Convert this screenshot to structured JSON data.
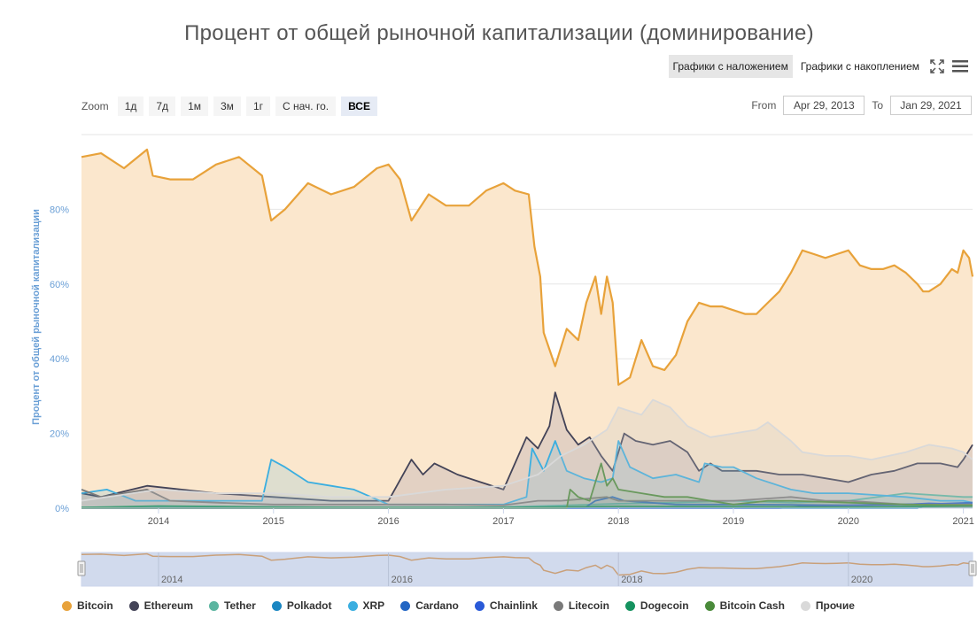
{
  "title": "Процент от общей рыночной капитализации (доминирование)",
  "toolbar": {
    "overlay_label": "Графики с наложением",
    "stacked_label": "Графики с накоплением",
    "fullscreen_icon": "fullscreen-icon",
    "menu_icon": "hamburger-menu-icon"
  },
  "zoom": {
    "label": "Zoom",
    "buttons": [
      "1д",
      "7д",
      "1м",
      "3м",
      "1г",
      "С нач. го.",
      "ВСЕ"
    ],
    "active": "ВСЕ"
  },
  "range": {
    "from_label": "From",
    "from_value": "Apr 29, 2013",
    "to_label": "To",
    "to_value": "Jan 29, 2021"
  },
  "chart_data": {
    "type": "area",
    "ylabel": "Процент от общей рыночной капитализации",
    "ylim": [
      0,
      100
    ],
    "xlim": [
      2013.33,
      2021.08
    ],
    "yticks": [
      0,
      20,
      40,
      60,
      80
    ],
    "ytick_labels": [
      "0%",
      "20%",
      "40%",
      "60%",
      "80%"
    ],
    "xticks": [
      2014,
      2015,
      2016,
      2017,
      2018,
      2019,
      2020,
      2021
    ],
    "xtick_labels": [
      "2014",
      "2015",
      "2016",
      "2017",
      "2018",
      "2019",
      "2020",
      "2021"
    ],
    "navigator_ticks": [
      2014,
      2016,
      2018,
      2020
    ],
    "navigator_tick_labels": [
      "2014",
      "2016",
      "2018",
      "2020"
    ],
    "grid": true,
    "legend_position": "bottom",
    "series": [
      {
        "name": "Bitcoin",
        "color": "#e8a23a",
        "fill": "#fbe7cd",
        "points": [
          [
            2013.33,
            94
          ],
          [
            2013.5,
            95
          ],
          [
            2013.7,
            91
          ],
          [
            2013.9,
            96
          ],
          [
            2013.95,
            89
          ],
          [
            2014.1,
            88
          ],
          [
            2014.3,
            88
          ],
          [
            2014.5,
            92
          ],
          [
            2014.7,
            94
          ],
          [
            2014.9,
            89
          ],
          [
            2014.98,
            77
          ],
          [
            2015.1,
            80
          ],
          [
            2015.3,
            87
          ],
          [
            2015.5,
            84
          ],
          [
            2015.7,
            86
          ],
          [
            2015.9,
            91
          ],
          [
            2016.0,
            92
          ],
          [
            2016.1,
            88
          ],
          [
            2016.2,
            77
          ],
          [
            2016.35,
            84
          ],
          [
            2016.5,
            81
          ],
          [
            2016.7,
            81
          ],
          [
            2016.85,
            85
          ],
          [
            2017.0,
            87
          ],
          [
            2017.1,
            85
          ],
          [
            2017.22,
            84
          ],
          [
            2017.27,
            70
          ],
          [
            2017.32,
            62
          ],
          [
            2017.35,
            47
          ],
          [
            2017.45,
            38
          ],
          [
            2017.55,
            48
          ],
          [
            2017.65,
            45
          ],
          [
            2017.72,
            55
          ],
          [
            2017.8,
            62
          ],
          [
            2017.85,
            52
          ],
          [
            2017.9,
            62
          ],
          [
            2017.95,
            55
          ],
          [
            2018.0,
            33
          ],
          [
            2018.1,
            35
          ],
          [
            2018.2,
            45
          ],
          [
            2018.3,
            38
          ],
          [
            2018.4,
            37
          ],
          [
            2018.5,
            41
          ],
          [
            2018.6,
            50
          ],
          [
            2018.7,
            55
          ],
          [
            2018.8,
            54
          ],
          [
            2018.9,
            54
          ],
          [
            2019.0,
            53
          ],
          [
            2019.1,
            52
          ],
          [
            2019.2,
            52
          ],
          [
            2019.3,
            55
          ],
          [
            2019.4,
            58
          ],
          [
            2019.5,
            63
          ],
          [
            2019.6,
            69
          ],
          [
            2019.7,
            68
          ],
          [
            2019.8,
            67
          ],
          [
            2019.9,
            68
          ],
          [
            2020.0,
            69
          ],
          [
            2020.1,
            65
          ],
          [
            2020.2,
            64
          ],
          [
            2020.3,
            64
          ],
          [
            2020.4,
            65
          ],
          [
            2020.5,
            63
          ],
          [
            2020.6,
            60
          ],
          [
            2020.65,
            58
          ],
          [
            2020.7,
            58
          ],
          [
            2020.8,
            60
          ],
          [
            2020.9,
            64
          ],
          [
            2020.95,
            63
          ],
          [
            2021.0,
            69
          ],
          [
            2021.05,
            67
          ],
          [
            2021.08,
            62
          ]
        ]
      },
      {
        "name": "Ethereum",
        "color": "#434357",
        "fill": "rgba(120,110,150,0.18)",
        "points": [
          [
            2013.33,
            4
          ],
          [
            2013.5,
            3
          ],
          [
            2013.9,
            6
          ],
          [
            2014.5,
            4
          ],
          [
            2015.0,
            3
          ],
          [
            2015.5,
            2
          ],
          [
            2016.0,
            2
          ],
          [
            2016.2,
            13
          ],
          [
            2016.3,
            9
          ],
          [
            2016.4,
            12
          ],
          [
            2016.6,
            9
          ],
          [
            2016.8,
            7
          ],
          [
            2017.0,
            5
          ],
          [
            2017.2,
            19
          ],
          [
            2017.3,
            16
          ],
          [
            2017.4,
            22
          ],
          [
            2017.45,
            31
          ],
          [
            2017.55,
            21
          ],
          [
            2017.65,
            17
          ],
          [
            2017.75,
            19
          ],
          [
            2017.85,
            14
          ],
          [
            2017.95,
            10
          ],
          [
            2018.05,
            20
          ],
          [
            2018.15,
            18
          ],
          [
            2018.3,
            17
          ],
          [
            2018.45,
            18
          ],
          [
            2018.6,
            15
          ],
          [
            2018.7,
            10
          ],
          [
            2018.8,
            12
          ],
          [
            2018.9,
            10
          ],
          [
            2019.0,
            10
          ],
          [
            2019.2,
            10
          ],
          [
            2019.4,
            9
          ],
          [
            2019.6,
            9
          ],
          [
            2019.8,
            8
          ],
          [
            2020.0,
            7
          ],
          [
            2020.2,
            9
          ],
          [
            2020.4,
            10
          ],
          [
            2020.6,
            12
          ],
          [
            2020.8,
            12
          ],
          [
            2020.95,
            11
          ],
          [
            2021.0,
            13
          ],
          [
            2021.08,
            17
          ]
        ]
      },
      {
        "name": "Tether",
        "color": "#5bb5a0",
        "fill": "rgba(91,181,160,0.12)",
        "points": [
          [
            2013.33,
            0.2
          ],
          [
            2015.0,
            0.3
          ],
          [
            2016.0,
            0.2
          ],
          [
            2017.0,
            0.3
          ],
          [
            2018.0,
            1.2
          ],
          [
            2018.5,
            1.5
          ],
          [
            2019.0,
            2
          ],
          [
            2019.5,
            1.5
          ],
          [
            2020.0,
            2
          ],
          [
            2020.5,
            4
          ],
          [
            2021.0,
            3
          ],
          [
            2021.08,
            3
          ]
        ]
      },
      {
        "name": "Polkadot",
        "color": "#1a86c2",
        "fill": "rgba(26,134,194,0.08)",
        "points": [
          [
            2013.33,
            0
          ],
          [
            2020.6,
            0
          ],
          [
            2020.7,
            1
          ],
          [
            2021.0,
            1.2
          ],
          [
            2021.08,
            1.3
          ]
        ]
      },
      {
        "name": "XRP",
        "color": "#3aaee0",
        "fill": "rgba(58,174,224,0.15)",
        "points": [
          [
            2013.33,
            4
          ],
          [
            2013.55,
            5
          ],
          [
            2013.8,
            2
          ],
          [
            2014.5,
            2
          ],
          [
            2014.9,
            2
          ],
          [
            2014.98,
            13
          ],
          [
            2015.1,
            11
          ],
          [
            2015.3,
            7
          ],
          [
            2015.5,
            6
          ],
          [
            2015.7,
            5
          ],
          [
            2016.0,
            1
          ],
          [
            2016.5,
            1
          ],
          [
            2017.0,
            1
          ],
          [
            2017.2,
            3
          ],
          [
            2017.25,
            16
          ],
          [
            2017.35,
            10
          ],
          [
            2017.45,
            18
          ],
          [
            2017.55,
            10
          ],
          [
            2017.7,
            8
          ],
          [
            2017.85,
            7
          ],
          [
            2017.95,
            8
          ],
          [
            2018.0,
            18
          ],
          [
            2018.1,
            11
          ],
          [
            2018.3,
            8
          ],
          [
            2018.5,
            9
          ],
          [
            2018.7,
            7
          ],
          [
            2018.75,
            12
          ],
          [
            2018.9,
            11
          ],
          [
            2019.0,
            11
          ],
          [
            2019.2,
            8
          ],
          [
            2019.5,
            5
          ],
          [
            2019.7,
            4
          ],
          [
            2020.0,
            4
          ],
          [
            2020.5,
            3
          ],
          [
            2020.8,
            2
          ],
          [
            2021.0,
            2
          ],
          [
            2021.08,
            1.5
          ]
        ]
      },
      {
        "name": "Cardano",
        "color": "#2266c4",
        "fill": "rgba(34,102,196,0.08)",
        "points": [
          [
            2013.33,
            0
          ],
          [
            2017.7,
            0
          ],
          [
            2017.8,
            2
          ],
          [
            2017.95,
            3
          ],
          [
            2018.05,
            2
          ],
          [
            2018.5,
            1
          ],
          [
            2019.0,
            1
          ],
          [
            2020.0,
            0.8
          ],
          [
            2020.8,
            1.2
          ],
          [
            2021.08,
            1.5
          ]
        ]
      },
      {
        "name": "Chainlink",
        "color": "#2a5ad8",
        "fill": "rgba(42,90,216,0.08)",
        "points": [
          [
            2013.33,
            0
          ],
          [
            2019.4,
            0
          ],
          [
            2019.6,
            0.6
          ],
          [
            2020.5,
            1
          ],
          [
            2020.7,
            1.3
          ],
          [
            2021.08,
            1
          ]
        ]
      },
      {
        "name": "Litecoin",
        "color": "#7a7a7a",
        "fill": "rgba(122,122,122,0.1)",
        "points": [
          [
            2013.33,
            5
          ],
          [
            2013.5,
            3
          ],
          [
            2013.9,
            5
          ],
          [
            2014.1,
            2
          ],
          [
            2014.5,
            1.5
          ],
          [
            2015.0,
            1
          ],
          [
            2015.5,
            1
          ],
          [
            2016.0,
            1
          ],
          [
            2016.5,
            1
          ],
          [
            2017.0,
            0.8
          ],
          [
            2017.3,
            2
          ],
          [
            2017.5,
            2
          ],
          [
            2017.9,
            3
          ],
          [
            2018.0,
            2
          ],
          [
            2018.5,
            2
          ],
          [
            2019.0,
            2
          ],
          [
            2019.5,
            3
          ],
          [
            2019.8,
            2
          ],
          [
            2020.0,
            2
          ],
          [
            2020.5,
            1
          ],
          [
            2021.08,
            1
          ]
        ]
      },
      {
        "name": "Dogecoin",
        "color": "#15925f",
        "fill": "rgba(21,146,95,0.08)",
        "points": [
          [
            2013.33,
            0.2
          ],
          [
            2014.0,
            0.6
          ],
          [
            2015.0,
            0.3
          ],
          [
            2016.0,
            0.2
          ],
          [
            2017.0,
            0.2
          ],
          [
            2018.0,
            0.5
          ],
          [
            2019.0,
            0.4
          ],
          [
            2020.0,
            0.3
          ],
          [
            2021.08,
            0.6
          ]
        ]
      },
      {
        "name": "Bitcoin Cash",
        "color": "#4a8a3a",
        "fill": "rgba(74,138,58,0.12)",
        "points": [
          [
            2013.33,
            0
          ],
          [
            2017.55,
            0
          ],
          [
            2017.58,
            5
          ],
          [
            2017.65,
            3
          ],
          [
            2017.75,
            2
          ],
          [
            2017.85,
            12
          ],
          [
            2017.9,
            6
          ],
          [
            2017.95,
            8
          ],
          [
            2018.0,
            5
          ],
          [
            2018.2,
            4
          ],
          [
            2018.4,
            3
          ],
          [
            2018.6,
            3
          ],
          [
            2018.8,
            2
          ],
          [
            2019.0,
            1
          ],
          [
            2019.3,
            2
          ],
          [
            2019.5,
            2
          ],
          [
            2020.0,
            1.5
          ],
          [
            2020.5,
            1
          ],
          [
            2021.08,
            0.8
          ]
        ]
      },
      {
        "name": "Прочие",
        "color": "#d9d9d9",
        "fill": "rgba(200,200,200,0.25)",
        "points": [
          [
            2013.33,
            2
          ],
          [
            2014.0,
            5
          ],
          [
            2014.5,
            4
          ],
          [
            2015.0,
            4
          ],
          [
            2015.5,
            3
          ],
          [
            2016.0,
            3
          ],
          [
            2016.5,
            5
          ],
          [
            2017.0,
            6
          ],
          [
            2017.3,
            9
          ],
          [
            2017.5,
            14
          ],
          [
            2017.7,
            17
          ],
          [
            2017.9,
            21
          ],
          [
            2018.0,
            27
          ],
          [
            2018.2,
            25
          ],
          [
            2018.3,
            29
          ],
          [
            2018.45,
            27
          ],
          [
            2018.6,
            22
          ],
          [
            2018.8,
            19
          ],
          [
            2019.0,
            20
          ],
          [
            2019.2,
            21
          ],
          [
            2019.3,
            23
          ],
          [
            2019.5,
            18
          ],
          [
            2019.6,
            15
          ],
          [
            2019.8,
            14
          ],
          [
            2020.0,
            14
          ],
          [
            2020.2,
            13
          ],
          [
            2020.5,
            15
          ],
          [
            2020.7,
            17
          ],
          [
            2020.9,
            16
          ],
          [
            2021.0,
            15
          ],
          [
            2021.08,
            13
          ]
        ]
      }
    ]
  }
}
